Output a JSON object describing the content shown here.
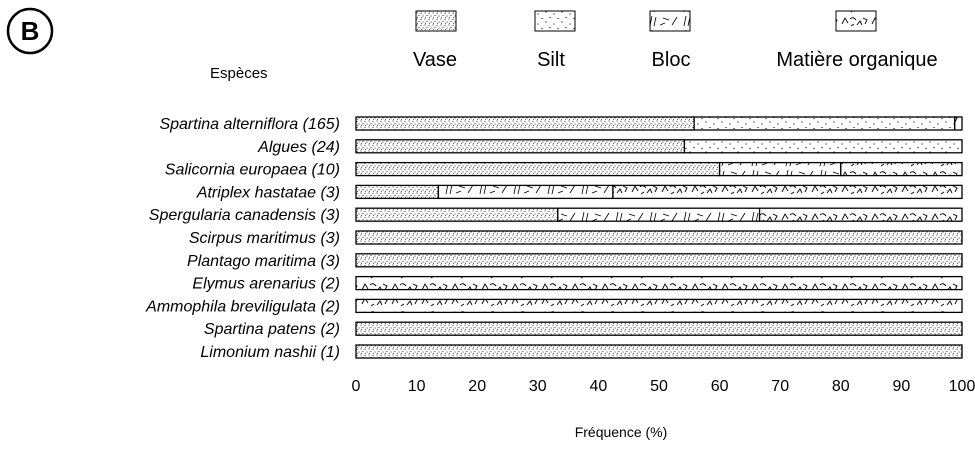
{
  "panel_label": "B",
  "chart_data": {
    "type": "bar",
    "orientation": "horizontal",
    "stacked": true,
    "row_header": "Espèces",
    "xlabel": "Fréquence (%)",
    "xlim": [
      0,
      100
    ],
    "xticks": [
      "0",
      "10",
      "20",
      "30",
      "40",
      "50",
      "60",
      "70",
      "80",
      "90",
      "100"
    ],
    "legend_position": "top",
    "categories": [
      "Spartina alterniflora (165)",
      "Algues (24)",
      "Salicornia europaea (10)",
      "Atriplex hastatae (3)",
      "Spergularia canadensis (3)",
      "Scirpus maritimus (3)",
      "Plantago maritima (3)",
      "Elymus arenarius (2)",
      "Ammophila breviligulata (2)",
      "Spartina patens (2)",
      "Limonium nashii (1)"
    ],
    "series": [
      {
        "name": "Vase",
        "pattern": "dense-dots",
        "values": [
          55.8,
          54.2,
          60,
          13.6,
          33.3,
          100,
          100,
          0,
          0,
          100,
          100
        ]
      },
      {
        "name": "Silt",
        "pattern": "sparse-dots",
        "values": [
          43.0,
          45.8,
          0,
          0,
          0,
          0,
          0,
          0,
          0,
          0,
          0
        ]
      },
      {
        "name": "Bloc",
        "pattern": "hatch-strokes",
        "values": [
          0,
          0,
          20,
          28.8,
          33.3,
          0,
          0,
          0,
          0,
          0,
          0
        ]
      },
      {
        "name": "Matière organique",
        "pattern": "organic-strokes",
        "values": [
          1.2,
          0,
          20,
          57.6,
          33.4,
          0,
          0,
          100,
          100,
          0,
          0
        ]
      }
    ]
  }
}
